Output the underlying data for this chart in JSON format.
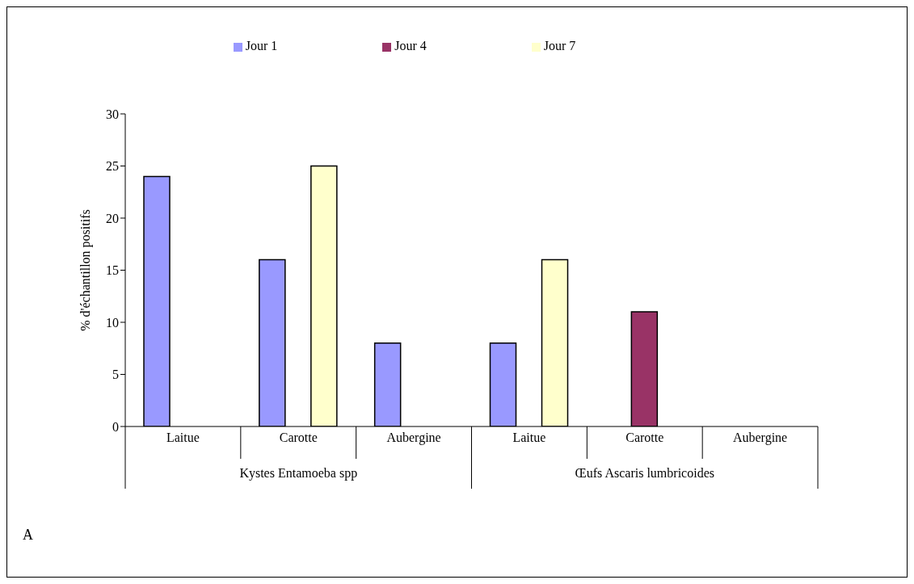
{
  "chart_data": {
    "type": "bar",
    "ylabel": "% d'échantillon positifs",
    "categories": [
      "Laitue",
      "Carotte",
      "Aubergine",
      "Laitue",
      "Carotte",
      "Aubergine"
    ],
    "series": [
      {
        "name": "Jour 1",
        "color": "#9999ff",
        "values": [
          24,
          16,
          8,
          8,
          0,
          0
        ]
      },
      {
        "name": "Jour 4",
        "color": "#993366",
        "values": [
          0,
          0,
          0,
          0,
          11,
          0
        ]
      },
      {
        "name": "Jour 7",
        "color": "#ffffcc",
        "values": [
          0,
          25,
          0,
          16,
          0,
          0
        ]
      }
    ],
    "ylim": [
      0,
      30
    ],
    "yticks": [
      0,
      5,
      10,
      15,
      20,
      25,
      30
    ],
    "annotations": [
      "Kystes Entamoeba spp",
      "Œufs Ascaris lumbricoides",
      "A"
    ],
    "legend": "top",
    "grid": false
  }
}
